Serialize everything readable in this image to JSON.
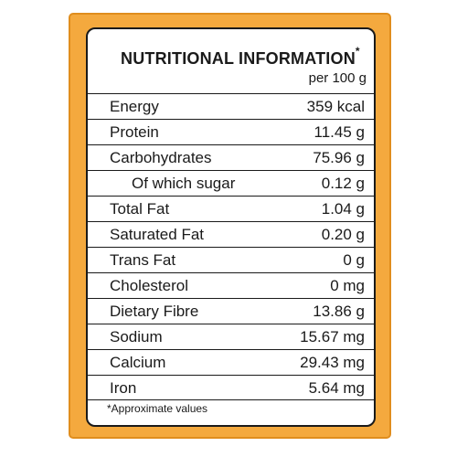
{
  "label": {
    "title": "NUTRITIONAL INFORMATION",
    "title_marker": "*",
    "serving": "per 100 g",
    "rows": [
      {
        "name": "Energy",
        "value": "359 kcal"
      },
      {
        "name": "Protein",
        "value": "11.45 g"
      },
      {
        "name": "Carbohydrates",
        "value": "75.96 g"
      },
      {
        "name": "Of which sugar",
        "value": "0.12 g"
      },
      {
        "name": "Total Fat",
        "value": "1.04 g"
      },
      {
        "name": "Saturated Fat",
        "value": "0.20 g"
      },
      {
        "name": "Trans Fat",
        "value": "0 g"
      },
      {
        "name": "Cholesterol",
        "value": "0 mg"
      },
      {
        "name": "Dietary Fibre",
        "value": "13.86 g"
      },
      {
        "name": "Sodium",
        "value": "15.67 mg"
      },
      {
        "name": "Calcium",
        "value": "29.43 mg"
      },
      {
        "name": "Iron",
        "value": "5.64 mg"
      }
    ],
    "footnote": "*Approximate values"
  },
  "colors": {
    "panel": "#f4a93e",
    "border": "#1a1a1a"
  }
}
